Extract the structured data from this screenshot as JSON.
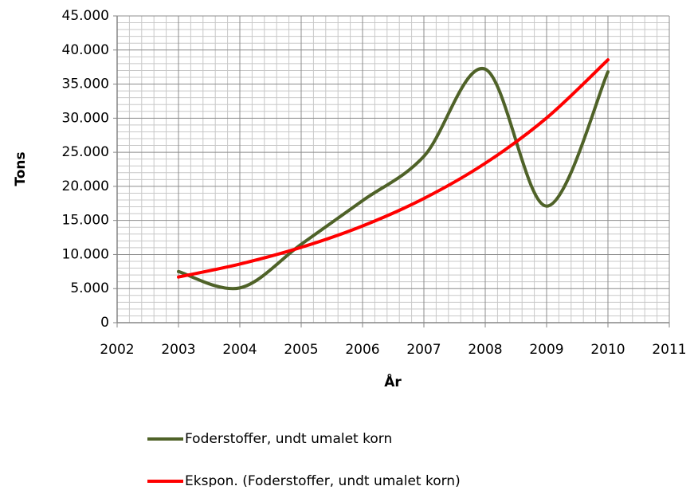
{
  "chart_data": {
    "type": "line",
    "x_label": "År",
    "y_label": "Tons",
    "x": [
      2003,
      2004,
      2005,
      2006,
      2007,
      2008,
      2009,
      2010
    ],
    "series": [
      {
        "name": "Foderstoffer, undt umalet korn",
        "color": "#4f6228",
        "values": [
          7500,
          5100,
          11500,
          17900,
          24400,
          37200,
          17100,
          36800
        ]
      },
      {
        "name": "Ekspon. (Foderstoffer, undt umalet korn)",
        "color": "#ff0000",
        "values": [
          6700,
          8600,
          11050,
          14190,
          18220,
          23390,
          30030,
          38560
        ]
      }
    ],
    "xlim": [
      2002,
      2011
    ],
    "xticks": [
      2002,
      2003,
      2004,
      2005,
      2006,
      2007,
      2008,
      2009,
      2010,
      2011
    ],
    "ylim": [
      0,
      45000
    ],
    "yticks": [
      0,
      {
        "value": 5000,
        "label": "5.000"
      },
      {
        "value": 10000,
        "label": "10.000"
      },
      {
        "value": 15000,
        "label": "15.000"
      },
      {
        "value": 20000,
        "label": "20.000"
      },
      {
        "value": 25000,
        "label": "25.000"
      },
      {
        "value": 30000,
        "label": "30.000"
      },
      {
        "value": 35000,
        "label": "35.000"
      },
      {
        "value": 40000,
        "label": "40.000"
      },
      {
        "value": 45000,
        "label": "45.000"
      }
    ],
    "grid": true,
    "smooth": true,
    "legend": "bottom"
  }
}
